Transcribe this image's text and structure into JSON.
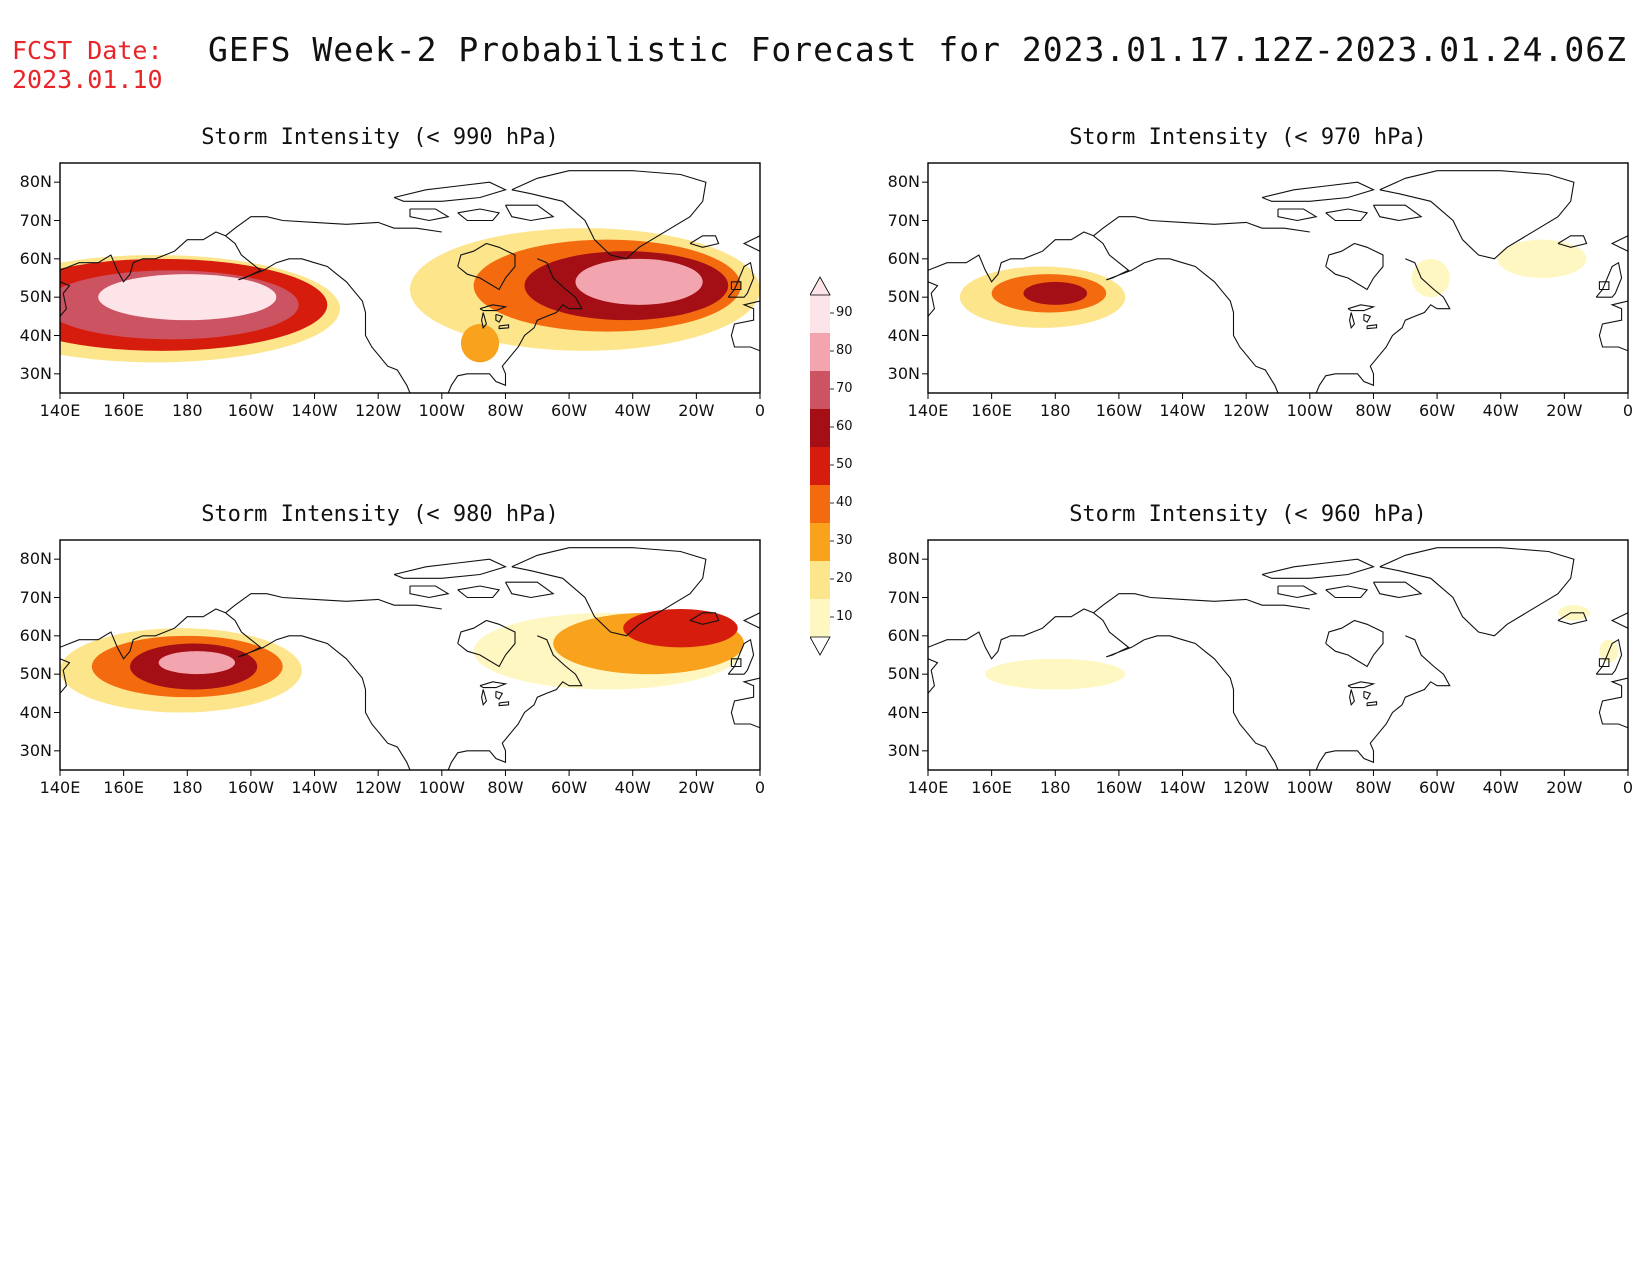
{
  "header": {
    "fcst_label": "FCST Date:",
    "fcst_date": "2023.01.10",
    "title": "GEFS Week-2 Probabilistic Forecast for 2023.01.17.12Z-2023.01.24.06Z"
  },
  "axes": {
    "lat_labels": [
      "80N",
      "70N",
      "60N",
      "50N",
      "40N",
      "30N"
    ],
    "lon_labels": [
      "140E",
      "160E",
      "180",
      "160W",
      "140W",
      "120W",
      "100W",
      "80W",
      "60W",
      "40W",
      "20W",
      "0"
    ]
  },
  "panels": [
    {
      "title": "Storm Intensity (< 990 hPa)",
      "threshold_hpa": 990,
      "blobs": [
        {
          "lon": 180,
          "lat": 50,
          "rx": 28,
          "ry": 6,
          "p": 90
        },
        {
          "lon": 175,
          "lat": 48,
          "rx": 40,
          "ry": 9,
          "p": 75
        },
        {
          "lon": 172,
          "lat": 48,
          "rx": 52,
          "ry": 12,
          "p": 55
        },
        {
          "lon": 170,
          "lat": 47,
          "rx": 58,
          "ry": 14,
          "p": 25
        },
        {
          "lon": 322,
          "lat": 54,
          "rx": 20,
          "ry": 6,
          "p": 85
        },
        {
          "lon": 318,
          "lat": 53,
          "rx": 32,
          "ry": 9,
          "p": 65
        },
        {
          "lon": 312,
          "lat": 53,
          "rx": 42,
          "ry": 12,
          "p": 45
        },
        {
          "lon": 305,
          "lat": 52,
          "rx": 55,
          "ry": 16,
          "p": 22
        },
        {
          "lon": 272,
          "lat": 38,
          "rx": 6,
          "ry": 5,
          "p": 35
        }
      ]
    },
    {
      "title": "Storm Intensity (< 970 hPa)",
      "threshold_hpa": 970,
      "blobs": [
        {
          "lon": 180,
          "lat": 51,
          "rx": 10,
          "ry": 3,
          "p": 60
        },
        {
          "lon": 178,
          "lat": 51,
          "rx": 18,
          "ry": 5,
          "p": 45
        },
        {
          "lon": 176,
          "lat": 50,
          "rx": 26,
          "ry": 8,
          "p": 22
        },
        {
          "lon": 333,
          "lat": 60,
          "rx": 14,
          "ry": 5,
          "p": 15
        },
        {
          "lon": 298,
          "lat": 55,
          "rx": 6,
          "ry": 5,
          "p": 15
        }
      ]
    },
    {
      "title": "Storm Intensity (< 980 hPa)",
      "threshold_hpa": 980,
      "blobs": [
        {
          "lon": 183,
          "lat": 53,
          "rx": 12,
          "ry": 3,
          "p": 80
        },
        {
          "lon": 182,
          "lat": 52,
          "rx": 20,
          "ry": 6,
          "p": 62
        },
        {
          "lon": 180,
          "lat": 52,
          "rx": 30,
          "ry": 8,
          "p": 42
        },
        {
          "lon": 178,
          "lat": 51,
          "rx": 38,
          "ry": 11,
          "p": 20
        },
        {
          "lon": 335,
          "lat": 62,
          "rx": 18,
          "ry": 5,
          "p": 55
        },
        {
          "lon": 325,
          "lat": 58,
          "rx": 30,
          "ry": 8,
          "p": 30
        },
        {
          "lon": 312,
          "lat": 56,
          "rx": 42,
          "ry": 10,
          "p": 15
        }
      ]
    },
    {
      "title": "Storm Intensity (< 960 hPa)",
      "threshold_hpa": 960,
      "blobs": [
        {
          "lon": 180,
          "lat": 50,
          "rx": 22,
          "ry": 4,
          "p": 15
        },
        {
          "lon": 343,
          "lat": 66,
          "rx": 5,
          "ry": 2,
          "p": 15
        },
        {
          "lon": 354,
          "lat": 56,
          "rx": 3,
          "ry": 3,
          "p": 15
        }
      ]
    }
  ],
  "colorbar": {
    "labels": [
      "90",
      "80",
      "70",
      "60",
      "50",
      "40",
      "30",
      "20",
      "10"
    ],
    "levels": [
      10,
      20,
      30,
      40,
      50,
      60,
      70,
      80,
      90
    ],
    "colors": [
      "#fff7c2",
      "#fde58c",
      "#f8a21e",
      "#f46b0f",
      "#d61d0d",
      "#a30f14",
      "#cc5362",
      "#f3a5af",
      "#fde4e8"
    ]
  }
}
